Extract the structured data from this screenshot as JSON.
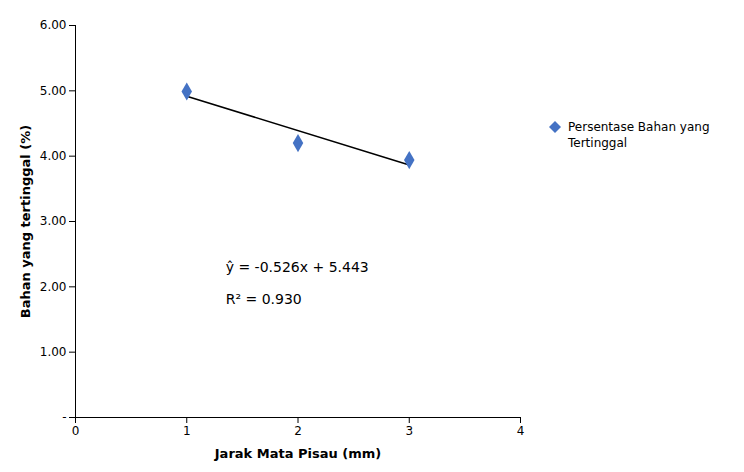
{
  "chart_data": {
    "type": "scatter",
    "xlabel": "Jarak Mata Pisau (mm)",
    "ylabel": "Bahan yang tertinggal (%)",
    "series": [
      {
        "type": "line",
        "color": "#000000",
        "x": [
          1,
          3
        ],
        "values": [
          4.917,
          3.865
        ]
      },
      {
        "type": "scatter",
        "name": "Persentase Bahan yang\nTertinggal",
        "color": "#4472C4",
        "marker": "diamond",
        "x": [
          1,
          2,
          3
        ],
        "values": [
          4.99,
          4.2,
          3.94
        ]
      }
    ],
    "annotations": [
      {
        "text": "ŷ = -0.526x + 5.443",
        "x": 1.35,
        "y": 2.3
      },
      {
        "text": "R² = 0.930",
        "x": 1.35,
        "y": 1.8
      }
    ],
    "xlim": [
      0,
      4
    ],
    "ylim": [
      0,
      6.0
    ],
    "xticks": [
      0,
      1,
      2,
      3,
      4
    ],
    "yticks": [
      {
        "value": 0,
        "label": "-"
      },
      {
        "value": 1.0,
        "label": "1.00"
      },
      {
        "value": 2.0,
        "label": "2.00"
      },
      {
        "value": 3.0,
        "label": "3.00"
      },
      {
        "value": 4.0,
        "label": "4.00"
      },
      {
        "value": 5.0,
        "label": "5.00"
      },
      {
        "value": 6.0,
        "label": "6.00"
      }
    ],
    "legend": "right"
  }
}
